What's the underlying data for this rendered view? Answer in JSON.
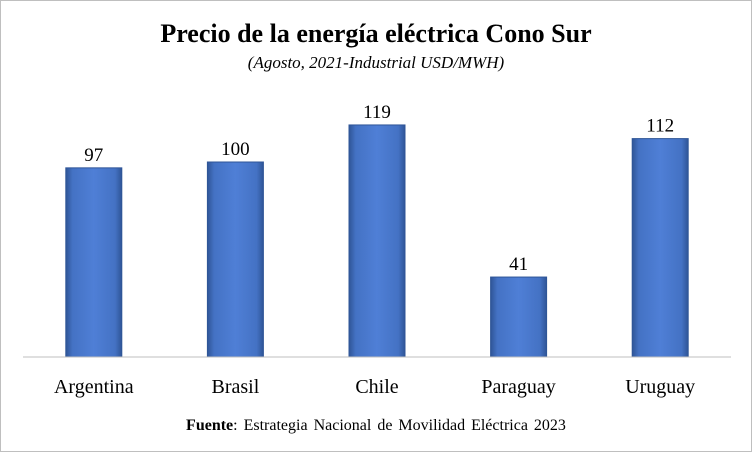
{
  "chart_data": {
    "type": "bar",
    "title": "Precio de la energía eléctrica Cono Sur",
    "subtitle": "(Agosto, 2021-Industrial USD/MWH)",
    "categories": [
      "Argentina",
      "Brasil",
      "Chile",
      "Paraguay",
      "Uruguay"
    ],
    "values": [
      97,
      100,
      119,
      41,
      112
    ],
    "ylim": [
      0,
      120
    ],
    "grid": false,
    "legend": "none",
    "bar_color": "#4472C4",
    "bar_edge_color": "#2F5597"
  },
  "source": {
    "label": "Fuente",
    "text": ": Estrategia Nacional de Movilidad Eléctrica 2023"
  }
}
